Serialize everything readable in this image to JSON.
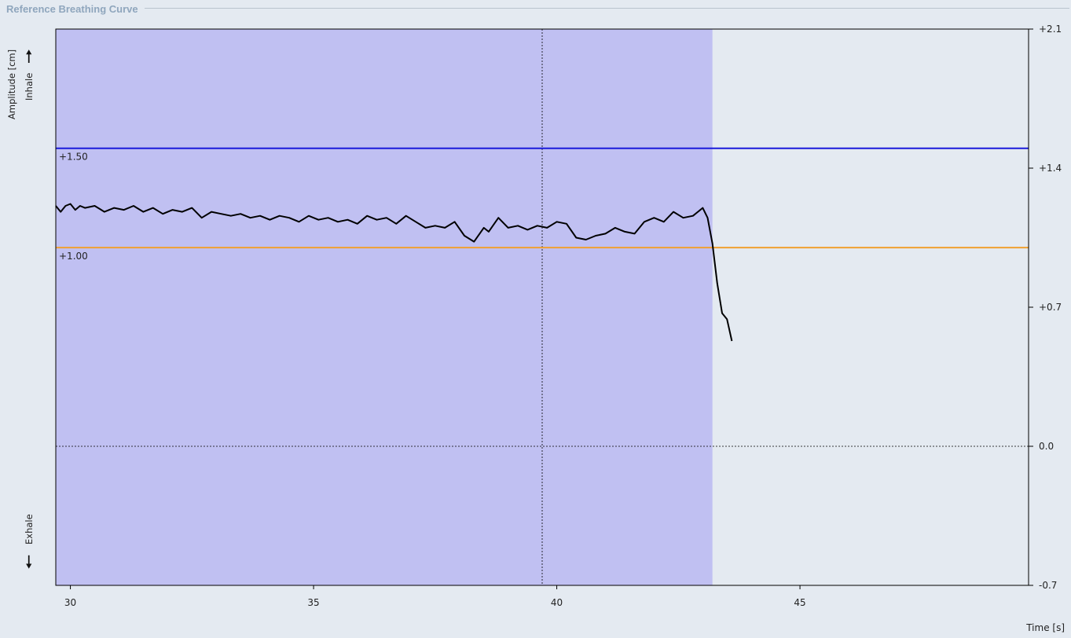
{
  "panel": {
    "title": "Reference Breathing Curve"
  },
  "labels": {
    "inhale": "Inhale",
    "exhale": "Exhale",
    "amplitude": "Amplitude [cm]",
    "up_arrow": "🠕",
    "down_arrow": "🠗"
  },
  "colors": {
    "background": "#e4eaf1",
    "shaded_region": "#c0c0f2",
    "upper_limit": "#1a1adb",
    "lower_limit": "#f0a030",
    "curve": "#000000"
  },
  "chart_data": {
    "type": "line",
    "xlabel": "Time [s]",
    "ylabel": "Amplitude [cm]",
    "xlim": [
      29.7,
      49.7
    ],
    "ylim": [
      -0.7,
      2.1
    ],
    "x_ticks": [
      30,
      35,
      40,
      45
    ],
    "x_tick_labels": [
      "30",
      "35",
      "40",
      "45"
    ],
    "y_ticks": [
      2.1,
      1.4,
      0.7,
      0.0,
      -0.7
    ],
    "y_tick_labels": [
      "+2.1",
      "+1.4",
      "+0.7",
      "0.0",
      "-0.7"
    ],
    "grid": false,
    "shaded_region": {
      "x_start": 29.7,
      "x_end": 43.2
    },
    "cursor_x": 39.7,
    "zero_line": 0.0,
    "upper_limit": {
      "value": 1.5,
      "label": "+1.50"
    },
    "lower_limit": {
      "value": 1.0,
      "label": "+1.00"
    },
    "series": [
      {
        "x": [
          29.7,
          29.8,
          29.9,
          30.0,
          30.1,
          30.2,
          30.3,
          30.5,
          30.7,
          30.9,
          31.1,
          31.3,
          31.5,
          31.7,
          31.9,
          32.1,
          32.3,
          32.5,
          32.7,
          32.9,
          33.1,
          33.3,
          33.5,
          33.7,
          33.9,
          34.1,
          34.3,
          34.5,
          34.7,
          34.9,
          35.1,
          35.3,
          35.5,
          35.7,
          35.9,
          36.1,
          36.3,
          36.5,
          36.7,
          36.9,
          37.1,
          37.3,
          37.5,
          37.7,
          37.9,
          38.1,
          38.3,
          38.5,
          38.6,
          38.8,
          39.0,
          39.2,
          39.4,
          39.6,
          39.8,
          40.0,
          40.2,
          40.4,
          40.6,
          40.8,
          41.0,
          41.2,
          41.4,
          41.6,
          41.8,
          42.0,
          42.2,
          42.4,
          42.6,
          42.8,
          43.0,
          43.1,
          43.2,
          43.3,
          43.4,
          43.5,
          43.6
        ],
        "y": [
          1.21,
          1.18,
          1.21,
          1.22,
          1.19,
          1.21,
          1.2,
          1.21,
          1.18,
          1.2,
          1.19,
          1.21,
          1.18,
          1.2,
          1.17,
          1.19,
          1.18,
          1.2,
          1.15,
          1.18,
          1.17,
          1.16,
          1.17,
          1.15,
          1.16,
          1.14,
          1.16,
          1.15,
          1.13,
          1.16,
          1.14,
          1.15,
          1.13,
          1.14,
          1.12,
          1.16,
          1.14,
          1.15,
          1.12,
          1.16,
          1.13,
          1.1,
          1.11,
          1.1,
          1.13,
          1.06,
          1.03,
          1.1,
          1.08,
          1.15,
          1.1,
          1.11,
          1.09,
          1.11,
          1.1,
          1.13,
          1.12,
          1.05,
          1.04,
          1.06,
          1.07,
          1.1,
          1.08,
          1.07,
          1.13,
          1.15,
          1.13,
          1.18,
          1.15,
          1.16,
          1.2,
          1.15,
          1.02,
          0.82,
          0.67,
          0.64,
          0.53
        ]
      }
    ]
  }
}
